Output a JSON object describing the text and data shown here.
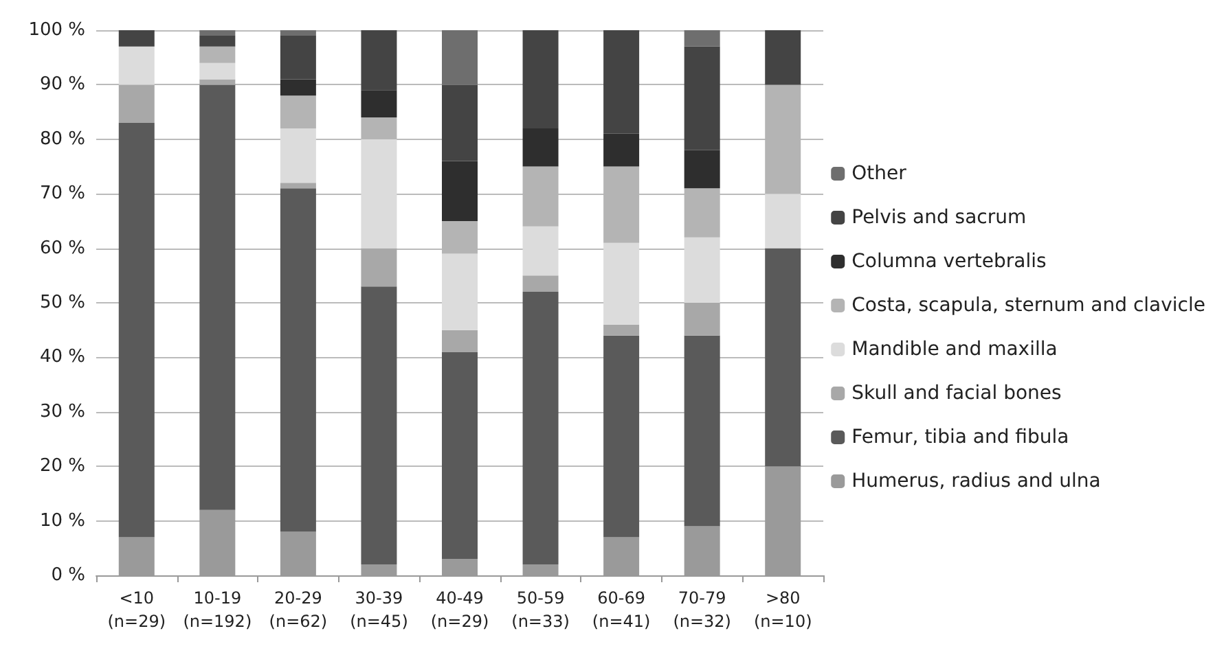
{
  "chart_data": {
    "type": "bar",
    "stacked": true,
    "categories": [
      "<10\n(n=29)",
      "10-19\n(n=192)",
      "20-29\n(n=62)",
      "30-39\n(n=45)",
      "40-49\n(n=29)",
      "50-59\n(n=33)",
      "60-69\n(n=41)",
      "70-79\n(n=32)",
      ">80\n(n=10)"
    ],
    "series": [
      {
        "name": "Humerus, radius and ulna",
        "color": "#9a9a9a",
        "values": [
          7,
          12,
          8,
          2,
          3,
          2,
          7,
          9,
          20
        ]
      },
      {
        "name": "Femur, tibia and fibula",
        "color": "#5a5a5a",
        "values": [
          76,
          78,
          63,
          51,
          38,
          50,
          37,
          35,
          40
        ]
      },
      {
        "name": "Skull and facial bones",
        "color": "#a8a8a8",
        "values": [
          7,
          1,
          1,
          7,
          4,
          3,
          2,
          6,
          0
        ]
      },
      {
        "name": "Mandible and maxilla",
        "color": "#dcdcdc",
        "values": [
          7,
          3,
          10,
          20,
          14,
          9,
          15,
          12,
          10
        ]
      },
      {
        "name": "Costa, scapula, sternum and clavicle",
        "color": "#b4b4b4",
        "values": [
          0,
          3,
          6,
          4,
          6,
          11,
          14,
          9,
          20
        ]
      },
      {
        "name": "Columna vertebralis",
        "color": "#2e2e2e",
        "values": [
          0,
          0,
          3,
          5,
          11,
          7,
          6,
          7,
          0
        ]
      },
      {
        "name": "Pelvis and sacrum",
        "color": "#444444",
        "values": [
          3,
          2,
          8,
          11,
          14,
          18,
          19,
          19,
          10
        ]
      },
      {
        "name": "Other",
        "color": "#6e6e6e",
        "values": [
          0,
          1,
          1,
          0,
          10,
          0,
          0,
          3,
          0
        ]
      }
    ],
    "ylim": [
      0,
      100
    ],
    "yticks": [
      {
        "value": 0,
        "label": "0 %"
      },
      {
        "value": 10,
        "label": "10 %"
      },
      {
        "value": 20,
        "label": "20 %"
      },
      {
        "value": 30,
        "label": "30 %"
      },
      {
        "value": 40,
        "label": "40 %"
      },
      {
        "value": 50,
        "label": "50 %"
      },
      {
        "value": 60,
        "label": "60 %"
      },
      {
        "value": 70,
        "label": "70 %"
      },
      {
        "value": 80,
        "label": "80 %"
      },
      {
        "value": 90,
        "label": "90 %"
      },
      {
        "value": 100,
        "label": "100 %"
      }
    ],
    "grid": "y",
    "legend": "right"
  }
}
